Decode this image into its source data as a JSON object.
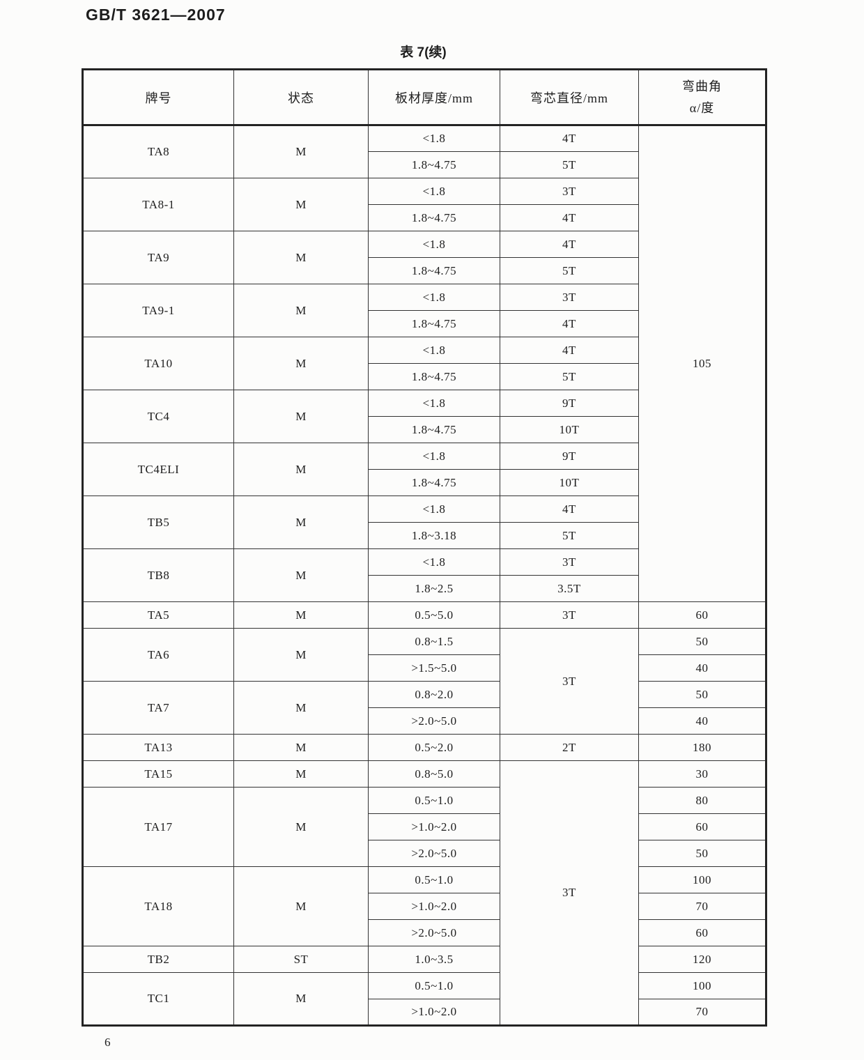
{
  "page": {
    "doc_number": "GB/T 3621—2007",
    "table_title": "表 7(续)",
    "page_number": "6"
  },
  "table": {
    "headers": [
      "牌号",
      "状态",
      "板材厚度/mm",
      "弯芯直径/mm"
    ],
    "angle_header": {
      "line1": "弯曲角",
      "line2": "α/度"
    },
    "rows": [
      [
        {
          "t": "TA8",
          "rs": 2
        },
        {
          "t": "M",
          "rs": 2
        },
        {
          "t": "<1.8"
        },
        {
          "t": "4T"
        },
        {
          "t": "105",
          "rs": 18
        }
      ],
      [
        {
          "t": "1.8~4.75"
        },
        {
          "t": "5T"
        }
      ],
      [
        {
          "t": "TA8-1",
          "rs": 2
        },
        {
          "t": "M",
          "rs": 2
        },
        {
          "t": "<1.8"
        },
        {
          "t": "3T"
        }
      ],
      [
        {
          "t": "1.8~4.75"
        },
        {
          "t": "4T"
        }
      ],
      [
        {
          "t": "TA9",
          "rs": 2
        },
        {
          "t": "M",
          "rs": 2
        },
        {
          "t": "<1.8"
        },
        {
          "t": "4T"
        }
      ],
      [
        {
          "t": "1.8~4.75"
        },
        {
          "t": "5T"
        }
      ],
      [
        {
          "t": "TA9-1",
          "rs": 2
        },
        {
          "t": "M",
          "rs": 2
        },
        {
          "t": "<1.8"
        },
        {
          "t": "3T"
        }
      ],
      [
        {
          "t": "1.8~4.75"
        },
        {
          "t": "4T"
        }
      ],
      [
        {
          "t": "TA10",
          "rs": 2
        },
        {
          "t": "M",
          "rs": 2
        },
        {
          "t": "<1.8"
        },
        {
          "t": "4T"
        }
      ],
      [
        {
          "t": "1.8~4.75"
        },
        {
          "t": "5T"
        }
      ],
      [
        {
          "t": "TC4",
          "rs": 2
        },
        {
          "t": "M",
          "rs": 2
        },
        {
          "t": "<1.8"
        },
        {
          "t": "9T"
        }
      ],
      [
        {
          "t": "1.8~4.75"
        },
        {
          "t": "10T"
        }
      ],
      [
        {
          "t": "TC4ELI",
          "rs": 2
        },
        {
          "t": "M",
          "rs": 2
        },
        {
          "t": "<1.8"
        },
        {
          "t": "9T"
        }
      ],
      [
        {
          "t": "1.8~4.75"
        },
        {
          "t": "10T"
        }
      ],
      [
        {
          "t": "TB5",
          "rs": 2
        },
        {
          "t": "M",
          "rs": 2
        },
        {
          "t": "<1.8"
        },
        {
          "t": "4T"
        }
      ],
      [
        {
          "t": "1.8~3.18"
        },
        {
          "t": "5T"
        }
      ],
      [
        {
          "t": "TB8",
          "rs": 2
        },
        {
          "t": "M",
          "rs": 2
        },
        {
          "t": "<1.8"
        },
        {
          "t": "3T"
        }
      ],
      [
        {
          "t": "1.8~2.5"
        },
        {
          "t": "3.5T"
        }
      ],
      [
        {
          "t": "TA5"
        },
        {
          "t": "M"
        },
        {
          "t": "0.5~5.0"
        },
        {
          "t": "3T"
        },
        {
          "t": "60"
        }
      ],
      [
        {
          "t": "TA6",
          "rs": 2
        },
        {
          "t": "M",
          "rs": 2
        },
        {
          "t": "0.8~1.5"
        },
        {
          "t": "3T",
          "rs": 4
        },
        {
          "t": "50"
        }
      ],
      [
        {
          "t": ">1.5~5.0"
        },
        {
          "t": "40"
        }
      ],
      [
        {
          "t": "TA7",
          "rs": 2
        },
        {
          "t": "M",
          "rs": 2
        },
        {
          "t": "0.8~2.0"
        },
        {
          "t": "50"
        }
      ],
      [
        {
          "t": ">2.0~5.0"
        },
        {
          "t": "40"
        }
      ],
      [
        {
          "t": "TA13"
        },
        {
          "t": "M"
        },
        {
          "t": "0.5~2.0"
        },
        {
          "t": "2T"
        },
        {
          "t": "180"
        }
      ],
      [
        {
          "t": "TA15"
        },
        {
          "t": "M"
        },
        {
          "t": "0.8~5.0"
        },
        {
          "t": "3T",
          "rs": 10
        },
        {
          "t": "30"
        }
      ],
      [
        {
          "t": "TA17",
          "rs": 3
        },
        {
          "t": "M",
          "rs": 3
        },
        {
          "t": "0.5~1.0"
        },
        {
          "t": "80"
        }
      ],
      [
        {
          "t": ">1.0~2.0"
        },
        {
          "t": "60"
        }
      ],
      [
        {
          "t": ">2.0~5.0"
        },
        {
          "t": "50"
        }
      ],
      [
        {
          "t": "TA18",
          "rs": 3
        },
        {
          "t": "M",
          "rs": 3
        },
        {
          "t": "0.5~1.0"
        },
        {
          "t": "100"
        }
      ],
      [
        {
          "t": ">1.0~2.0"
        },
        {
          "t": "70"
        }
      ],
      [
        {
          "t": ">2.0~5.0"
        },
        {
          "t": "60"
        }
      ],
      [
        {
          "t": "TB2"
        },
        {
          "t": "ST"
        },
        {
          "t": "1.0~3.5"
        },
        {
          "t": "120"
        }
      ],
      [
        {
          "t": "TC1",
          "rs": 2
        },
        {
          "t": "M",
          "rs": 2
        },
        {
          "t": "0.5~1.0"
        },
        {
          "t": "100"
        }
      ],
      [
        {
          "t": ">1.0~2.0"
        },
        {
          "t": "70"
        }
      ]
    ]
  }
}
